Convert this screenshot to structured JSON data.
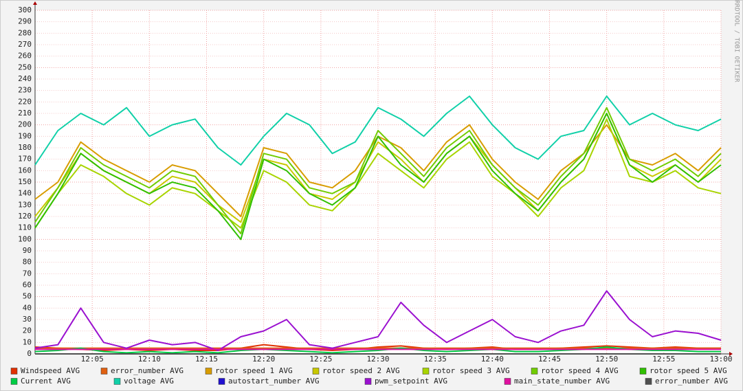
{
  "chart_data": {
    "type": "line",
    "watermark": "RRDTOOL / TOBI OETIKER",
    "x": [
      "12:00",
      "12:02",
      "12:04",
      "12:06",
      "12:08",
      "12:10",
      "12:12",
      "12:14",
      "12:16",
      "12:18",
      "12:20",
      "12:22",
      "12:24",
      "12:26",
      "12:28",
      "12:30",
      "12:32",
      "12:34",
      "12:36",
      "12:38",
      "12:40",
      "12:42",
      "12:44",
      "12:46",
      "12:48",
      "12:50",
      "12:52",
      "12:54",
      "12:56",
      "12:58",
      "13:00"
    ],
    "xlim": [
      "12:00",
      "13:00"
    ],
    "xticks": [
      "12:05",
      "12:10",
      "12:15",
      "12:20",
      "12:25",
      "12:30",
      "12:35",
      "12:40",
      "12:45",
      "12:50",
      "12:55",
      "13:00"
    ],
    "ylim": [
      0,
      300
    ],
    "yticks": [
      0,
      10,
      20,
      30,
      40,
      50,
      60,
      70,
      80,
      90,
      100,
      110,
      120,
      130,
      140,
      150,
      160,
      170,
      180,
      190,
      200,
      210,
      220,
      230,
      240,
      250,
      260,
      270,
      280,
      290,
      300
    ],
    "grid": true,
    "series": [
      {
        "name": "Windspeed AVG",
        "color": "#e03000",
        "values": [
          6,
          5,
          4,
          3,
          4,
          3,
          4,
          3,
          3,
          5,
          8,
          6,
          4,
          3,
          4,
          6,
          7,
          5,
          4,
          5,
          6,
          4,
          4,
          5,
          6,
          7,
          6,
          5,
          6,
          5,
          5
        ]
      },
      {
        "name": "error_number AVG",
        "color": "#e06010",
        "values": [
          5,
          5,
          5,
          5,
          5,
          5,
          5,
          5,
          5,
          5,
          5,
          5,
          5,
          5,
          5,
          5,
          5,
          5,
          5,
          5,
          5,
          5,
          5,
          5,
          5,
          5,
          5,
          5,
          5,
          5,
          5
        ]
      },
      {
        "name": "rotor speed 1 AVG",
        "color": "#d89c00",
        "values": [
          135,
          150,
          185,
          170,
          160,
          150,
          165,
          160,
          140,
          120,
          180,
          175,
          150,
          145,
          160,
          190,
          180,
          160,
          185,
          200,
          170,
          150,
          135,
          160,
          175,
          200,
          170,
          165,
          175,
          160,
          180
        ]
      },
      {
        "name": "rotor speed 2 AVG",
        "color": "#c8c800",
        "values": [
          120,
          145,
          175,
          160,
          150,
          140,
          155,
          150,
          130,
          115,
          170,
          165,
          140,
          135,
          150,
          185,
          170,
          150,
          175,
          190,
          165,
          145,
          125,
          150,
          170,
          210,
          165,
          155,
          165,
          150,
          170
        ]
      },
      {
        "name": "rotor speed 3 AVG",
        "color": "#a8d400",
        "values": [
          110,
          140,
          165,
          155,
          140,
          130,
          145,
          140,
          125,
          110,
          160,
          150,
          130,
          125,
          145,
          175,
          160,
          145,
          170,
          185,
          155,
          140,
          120,
          145,
          160,
          205,
          155,
          150,
          160,
          145,
          140
        ]
      },
      {
        "name": "rotor speed 4 AVG",
        "color": "#70cc00",
        "values": [
          115,
          145,
          180,
          165,
          155,
          145,
          160,
          155,
          130,
          105,
          175,
          170,
          145,
          140,
          150,
          195,
          175,
          155,
          180,
          195,
          165,
          145,
          130,
          155,
          175,
          215,
          170,
          160,
          170,
          155,
          175
        ]
      },
      {
        "name": "rotor speed 5 AVG",
        "color": "#30c000",
        "values": [
          110,
          140,
          175,
          160,
          150,
          140,
          150,
          145,
          125,
          100,
          170,
          160,
          140,
          130,
          145,
          190,
          165,
          150,
          175,
          190,
          160,
          140,
          125,
          150,
          170,
          210,
          165,
          150,
          165,
          150,
          165
        ]
      },
      {
        "name": "Current AVG",
        "color": "#00cc44",
        "values": [
          2,
          3,
          5,
          2,
          1,
          2,
          1,
          2,
          1,
          3,
          4,
          3,
          2,
          1,
          2,
          3,
          5,
          3,
          2,
          3,
          4,
          2,
          2,
          3,
          4,
          6,
          4,
          3,
          3,
          2,
          2
        ]
      },
      {
        "name": "voltage AVG",
        "color": "#10d0a8",
        "values": [
          165,
          195,
          210,
          200,
          215,
          190,
          200,
          205,
          180,
          165,
          190,
          210,
          200,
          175,
          185,
          215,
          205,
          190,
          210,
          225,
          200,
          180,
          170,
          190,
          195,
          225,
          200,
          210,
          200,
          195,
          205
        ]
      },
      {
        "name": "autostart_number AVG",
        "color": "#2010d0",
        "values": [
          0,
          0,
          0,
          0,
          0,
          0,
          0,
          0,
          0,
          0,
          0,
          0,
          0,
          0,
          0,
          0,
          0,
          0,
          0,
          0,
          0,
          0,
          0,
          0,
          0,
          0,
          0,
          0,
          0,
          0,
          0
        ]
      },
      {
        "name": "pwm_setpoint AVG",
        "color": "#9a10d0",
        "values": [
          5,
          8,
          40,
          10,
          5,
          12,
          8,
          10,
          3,
          15,
          20,
          30,
          8,
          5,
          10,
          15,
          45,
          25,
          10,
          20,
          30,
          15,
          10,
          20,
          25,
          55,
          30,
          15,
          20,
          18,
          12
        ]
      },
      {
        "name": "main_state_number AVG",
        "color": "#e010a0",
        "values": [
          4,
          4,
          4,
          4,
          4,
          4,
          4,
          4,
          4,
          4,
          4,
          4,
          4,
          4,
          4,
          4,
          4,
          4,
          4,
          4,
          4,
          4,
          4,
          4,
          4,
          4,
          4,
          4,
          4,
          4,
          4
        ]
      },
      {
        "name": "error_number AVG",
        "color": "#505050",
        "values": [
          0,
          0,
          0,
          0,
          0,
          0,
          0,
          0,
          0,
          0,
          0,
          0,
          0,
          0,
          0,
          0,
          0,
          0,
          0,
          0,
          0,
          0,
          0,
          0,
          0,
          0,
          0,
          0,
          0,
          0,
          0
        ]
      }
    ]
  }
}
